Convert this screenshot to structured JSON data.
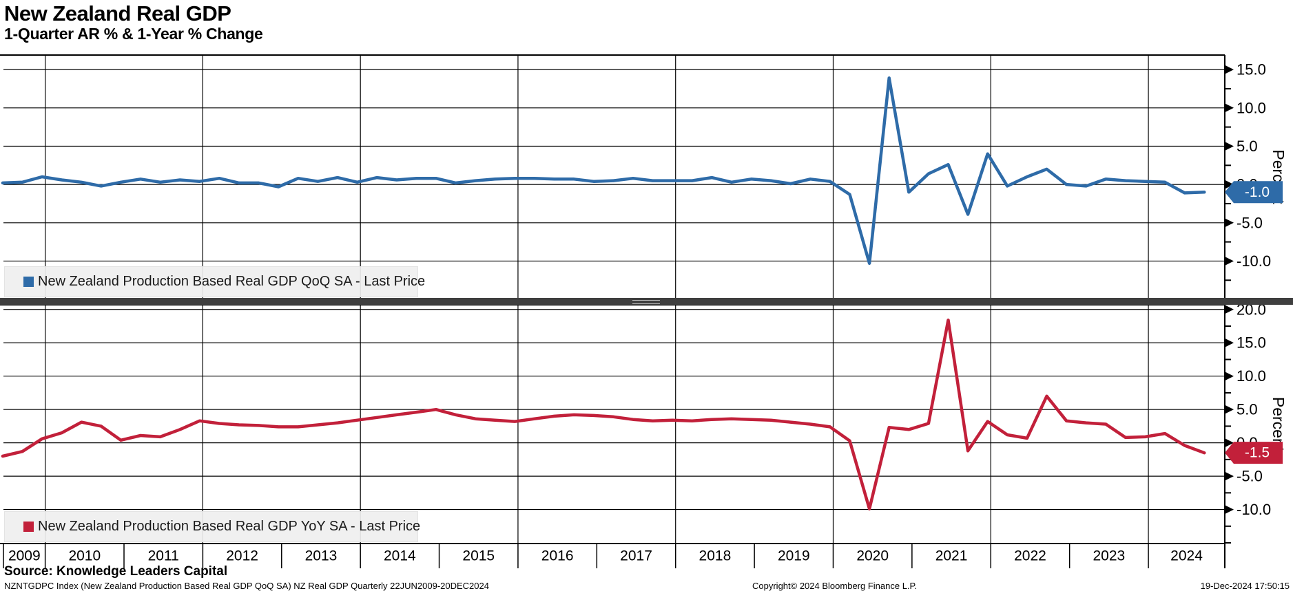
{
  "header": {
    "title": "New Zealand Real GDP",
    "subtitle": "1-Quarter AR % & 1-Year % Change"
  },
  "footer": {
    "source": "Source: Knowledge Leaders Capital",
    "meta": "NZNTGDPC Index (New Zealand Production Based Real GDP QoQ SA) NZ Real GDP  Quarterly 22JUN2009-20DEC2024",
    "copyright": "Copyright© 2024 Bloomberg Finance L.P.",
    "timestamp": "19-Dec-2024 17:50:15"
  },
  "chart_data": {
    "type": "line",
    "title": "New Zealand Real GDP",
    "subtitle": "1-Quarter AR % & 1-Year % Change",
    "x_quarter_start": "2009Q2",
    "x_quarter_end": "2024Q3",
    "x_years": [
      2009,
      2010,
      2011,
      2012,
      2013,
      2014,
      2015,
      2016,
      2017,
      2018,
      2019,
      2020,
      2021,
      2022,
      2023,
      2024
    ],
    "x_range": [
      2009.47,
      2024.97
    ],
    "vgrid_years": [
      2010,
      2012,
      2014,
      2016,
      2018,
      2020,
      2022,
      2024
    ],
    "grid": "on",
    "legend_position": "bottom-left-inside",
    "panels": [
      {
        "id": "qoq",
        "legend": "New Zealand Production Based Real GDP QoQ SA - Last Price",
        "color": "#2e6ba8",
        "ylabel": "Percent",
        "y_major_ticks": [
          15.0,
          10.0,
          5.0,
          0.0,
          -5.0,
          -10.0
        ],
        "y_minor_step": 2.5,
        "y_view": [
          16.9,
          -14.9
        ],
        "last_price": -1.0,
        "last_price_label": "-1.0",
        "values": [
          0.2,
          0.3,
          1.0,
          0.6,
          0.3,
          -0.2,
          0.3,
          0.7,
          0.3,
          0.6,
          0.4,
          0.8,
          0.2,
          0.2,
          -0.3,
          0.8,
          0.4,
          0.9,
          0.3,
          0.9,
          0.6,
          0.8,
          0.8,
          0.2,
          0.5,
          0.7,
          0.8,
          0.8,
          0.7,
          0.7,
          0.4,
          0.5,
          0.8,
          0.5,
          0.5,
          0.5,
          0.9,
          0.3,
          0.7,
          0.5,
          0.1,
          0.7,
          0.4,
          -1.3,
          -10.3,
          13.9,
          -1.0,
          1.4,
          2.6,
          -3.9,
          4.0,
          -0.2,
          1.0,
          2.0,
          0.0,
          -0.2,
          0.7,
          0.5,
          0.4,
          0.3,
          -1.1,
          -1.0
        ]
      },
      {
        "id": "yoy",
        "legend": "New Zealand Production Based Real GDP YoY SA - Last Price",
        "color": "#c2203a",
        "ylabel": "Percent",
        "y_major_ticks": [
          20.0,
          15.0,
          10.0,
          5.0,
          0.0,
          -5.0,
          -10.0
        ],
        "y_minor_step": 2.5,
        "y_view": [
          20.7,
          -15.1
        ],
        "last_price": -1.5,
        "last_price_label": "-1.5",
        "values": [
          -2.0,
          -1.3,
          0.6,
          1.5,
          3.1,
          2.5,
          0.4,
          1.1,
          0.9,
          2.0,
          3.3,
          2.9,
          2.7,
          2.6,
          2.4,
          2.4,
          2.7,
          3.0,
          3.4,
          3.8,
          4.2,
          4.6,
          5.0,
          4.2,
          3.6,
          3.4,
          3.2,
          3.6,
          4.0,
          4.2,
          4.1,
          3.9,
          3.5,
          3.3,
          3.4,
          3.3,
          3.5,
          3.6,
          3.5,
          3.4,
          3.1,
          2.8,
          2.4,
          0.3,
          -9.9,
          2.3,
          2.0,
          2.9,
          18.4,
          -1.2,
          3.2,
          1.2,
          0.7,
          7.0,
          3.3,
          3.0,
          2.8,
          0.8,
          0.9,
          1.4,
          -0.4,
          -1.5
        ]
      }
    ]
  }
}
